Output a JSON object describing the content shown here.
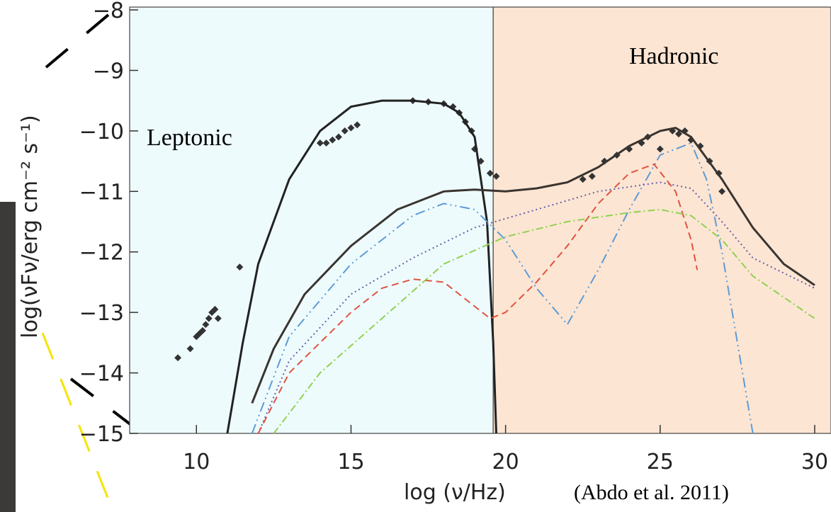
{
  "chart_data": {
    "type": "line",
    "xlabel": "log (ν/Hz)",
    "ylabel": "log(νFν/erg cm⁻² s⁻¹)",
    "annotations": [
      "Leptonic",
      "Hadronic",
      "(Abdo et al. 2011)"
    ],
    "regions": [
      {
        "xrange": [
          8,
          19.6
        ],
        "color": "#eefbfd"
      },
      {
        "xrange": [
          19.6,
          30
        ],
        "color": "#fce5d3"
      }
    ],
    "xlim": [
      8,
      30
    ],
    "ylim": [
      -15,
      -8
    ],
    "xticks": [
      10,
      15,
      20,
      25,
      30
    ],
    "yticks": [
      {
        "value": -15,
        "label": "−15"
      },
      {
        "value": -14,
        "label": "−14"
      },
      {
        "value": -13,
        "label": "−13"
      },
      {
        "value": -12,
        "label": "−12"
      },
      {
        "value": -11,
        "label": "−11"
      },
      {
        "value": -10,
        "label": "−10"
      },
      {
        "value": -9,
        "label": "−9"
      },
      {
        "value": -8,
        "label": "−8"
      }
    ],
    "series": [
      {
        "kind": "points",
        "color": "#333333",
        "x": [
          9.4,
          9.8,
          10.0,
          10.1,
          10.2,
          10.3,
          10.4,
          10.5,
          10.6,
          10.7,
          11.4,
          14.0,
          14.2,
          14.4,
          14.6,
          14.8,
          15.0,
          15.2,
          17.0,
          17.5,
          18.0,
          18.3,
          18.5,
          18.7,
          18.9,
          19.0,
          19.2,
          19.5,
          19.7,
          22.5,
          22.8,
          23.2,
          23.6,
          24.0,
          24.4,
          24.6,
          25.0,
          25.4,
          25.6,
          25.8,
          26.0,
          26.3,
          26.6,
          26.9,
          27.0
        ],
        "values": [
          -13.75,
          -13.6,
          -13.4,
          -13.35,
          -13.3,
          -13.2,
          -13.1,
          -13.0,
          -12.95,
          -13.1,
          -12.25,
          -10.2,
          -10.2,
          -10.15,
          -10.1,
          -10.0,
          -9.95,
          -9.9,
          -9.5,
          -9.52,
          -9.55,
          -9.6,
          -9.7,
          -9.85,
          -10.0,
          -10.3,
          -10.5,
          -10.7,
          -10.75,
          -10.8,
          -10.75,
          -10.5,
          -10.4,
          -10.3,
          -10.2,
          -10.1,
          -10.3,
          -10.0,
          -10.05,
          -10.0,
          -10.15,
          -10.25,
          -10.5,
          -10.7,
          -11.0
        ]
      },
      {
        "kind": "line",
        "color": "#222222",
        "dash": "none",
        "x": [
          11.0,
          11.5,
          12,
          13,
          14,
          15,
          16,
          17,
          18,
          18.5,
          19,
          19.4,
          19.6,
          19.7
        ],
        "values": [
          -15,
          -13.5,
          -12.2,
          -10.8,
          -10.0,
          -9.6,
          -9.5,
          -9.5,
          -9.55,
          -9.7,
          -10.1,
          -11.5,
          -13.5,
          -15
        ]
      },
      {
        "kind": "line",
        "color": "#3a3430",
        "dash": "none",
        "x": [
          11.8,
          12.5,
          13.5,
          15,
          16.5,
          18,
          19,
          20,
          21,
          22,
          23,
          24,
          25,
          25.5,
          26,
          27,
          28,
          29,
          30
        ],
        "values": [
          -14.5,
          -13.6,
          -12.7,
          -11.9,
          -11.3,
          -11.0,
          -10.97,
          -11.0,
          -10.95,
          -10.85,
          -10.6,
          -10.25,
          -10.0,
          -9.95,
          -10.1,
          -10.8,
          -11.6,
          -12.2,
          -12.55
        ]
      },
      {
        "kind": "line",
        "color": "#5b9bd5",
        "dash": "14 5 2 5 2 5",
        "x": [
          11.8,
          13,
          15,
          17,
          18,
          19,
          20,
          21,
          22,
          23,
          24,
          25,
          26,
          26.5,
          27,
          27.5,
          28
        ],
        "values": [
          -15,
          -13.4,
          -12.2,
          -11.4,
          -11.2,
          -11.3,
          -11.8,
          -12.6,
          -13.2,
          -12.3,
          -11.3,
          -10.4,
          -10.2,
          -10.8,
          -12.0,
          -13.5,
          -15
        ]
      },
      {
        "kind": "line",
        "color": "#6a5fa8",
        "dash": "2 4",
        "x": [
          12,
          13,
          15,
          17,
          19,
          21,
          23,
          25,
          26,
          27,
          28,
          30
        ],
        "values": [
          -15,
          -13.8,
          -12.7,
          -12.1,
          -11.6,
          -11.3,
          -11.0,
          -10.85,
          -10.95,
          -11.5,
          -12.1,
          -12.6
        ]
      },
      {
        "kind": "line",
        "color": "#e0533f",
        "dash": "10 6",
        "x": [
          12,
          13,
          15,
          16,
          17,
          18,
          19,
          19.5,
          20,
          21,
          22,
          23,
          24,
          24.8,
          25.5,
          26,
          26.2
        ],
        "values": [
          -15,
          -14,
          -13,
          -12.6,
          -12.45,
          -12.5,
          -12.9,
          -13.1,
          -13.0,
          -12.5,
          -11.9,
          -11.2,
          -10.7,
          -10.55,
          -11,
          -11.8,
          -12.3
        ]
      },
      {
        "kind": "line",
        "color": "#8fd14f",
        "dash": "10 4 2 4",
        "x": [
          12.5,
          14,
          16,
          18,
          20,
          22,
          24,
          25,
          26,
          27,
          28,
          30
        ],
        "values": [
          -15,
          -14,
          -13.1,
          -12.2,
          -11.75,
          -11.5,
          -11.35,
          -11.3,
          -11.4,
          -11.8,
          -12.4,
          -13.1
        ]
      }
    ]
  }
}
